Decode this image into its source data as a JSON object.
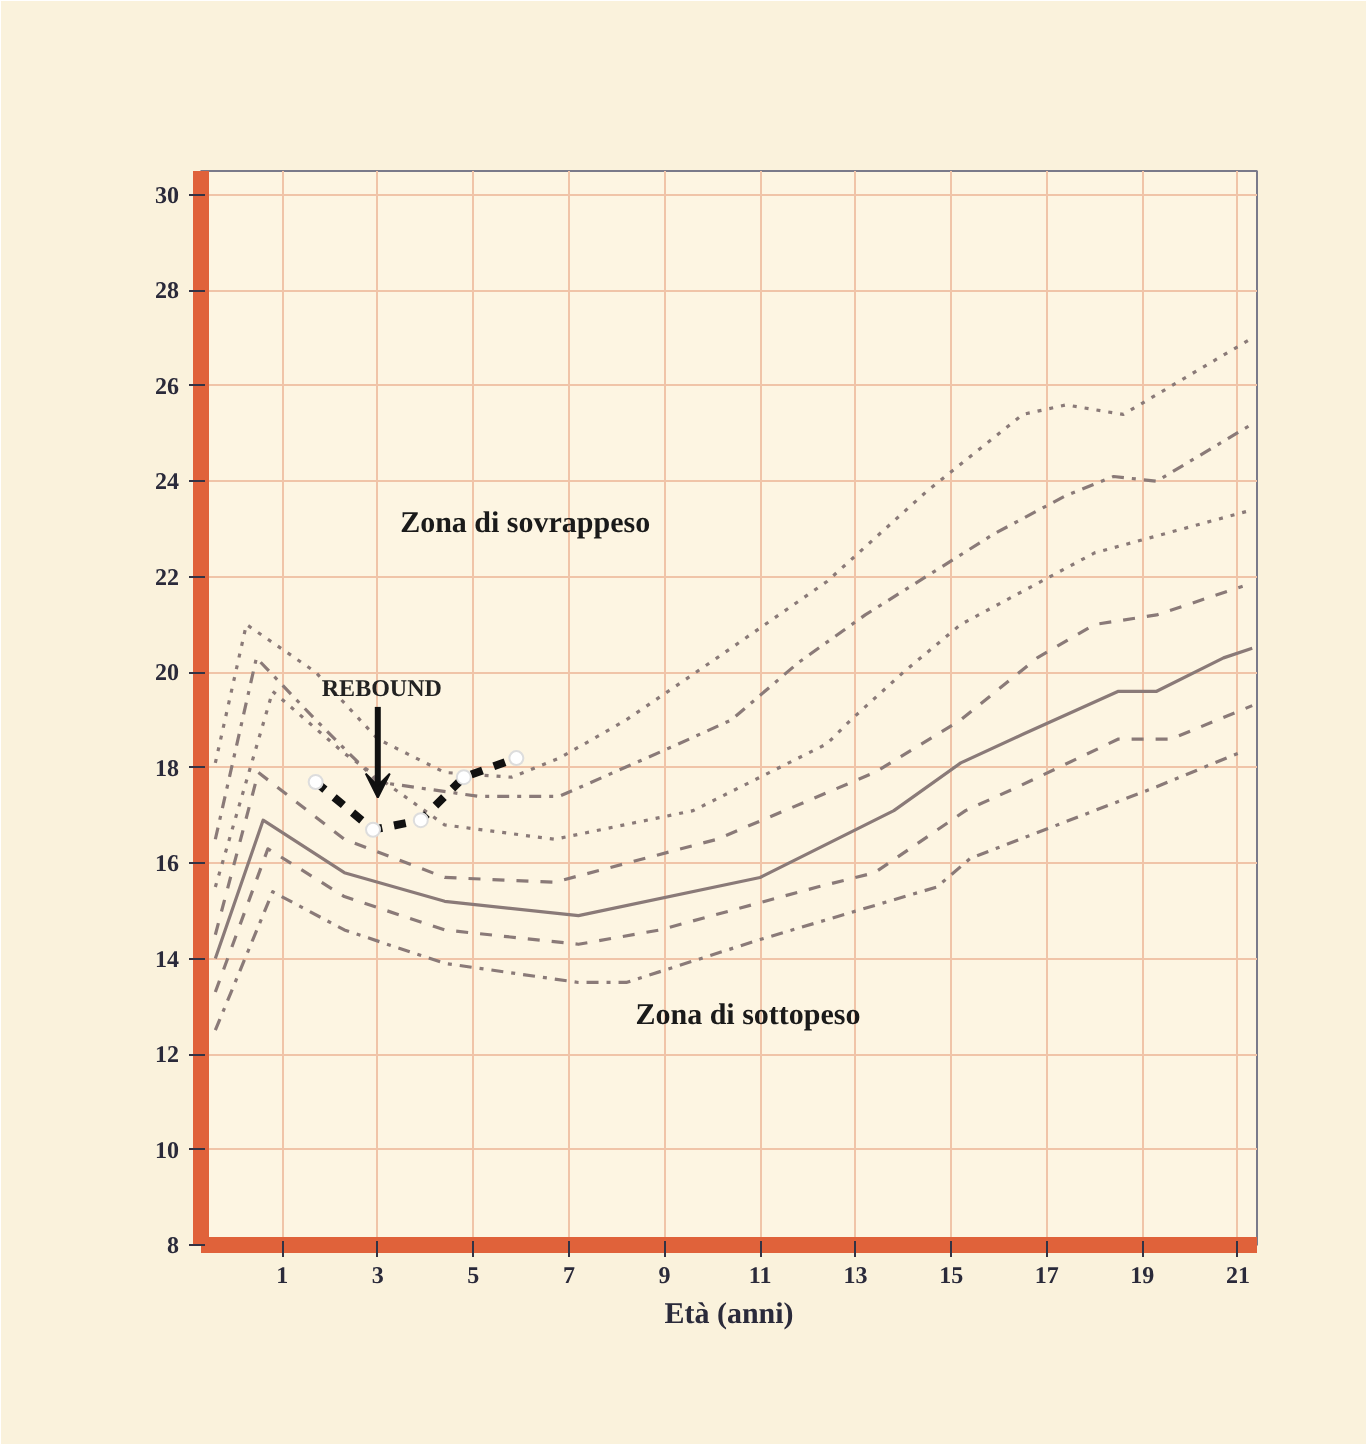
{
  "chart_data": {
    "type": "line",
    "xlabel": "Età (anni)",
    "xlim": [
      -0.7,
      21.4
    ],
    "ylim": [
      8,
      30.5
    ],
    "xticks": [
      1,
      3,
      5,
      7,
      9,
      11,
      13,
      15,
      17,
      19,
      21
    ],
    "yticks": [
      8,
      10,
      12,
      14,
      16,
      18,
      20,
      22,
      24,
      26,
      28,
      30
    ],
    "grid": true,
    "marker": "none",
    "series": [
      {
        "color": "#8a7a78",
        "line_style": "dotted",
        "x": [
          -0.4,
          0.25,
          1.7,
          3.0,
          4.4,
          5.8,
          6.8,
          8.2,
          10.1,
          12.4,
          14.5,
          16.5,
          17.4,
          18.6,
          21.3
        ],
        "values": [
          18.1,
          21.0,
          20.0,
          18.6,
          17.9,
          17.8,
          18.2,
          19.0,
          20.3,
          21.9,
          23.8,
          25.4,
          25.6,
          25.4,
          27.0
        ]
      },
      {
        "color": "#8a7a78",
        "line_style": "dashdot",
        "x": [
          -0.4,
          0.46,
          1.7,
          3.0,
          5.1,
          6.8,
          9.3,
          10.4,
          11.8,
          13.2,
          15.9,
          17.4,
          18.4,
          19.3,
          21.3
        ],
        "values": [
          16.5,
          20.3,
          19.0,
          17.7,
          17.4,
          17.4,
          18.5,
          19.0,
          20.2,
          21.2,
          22.9,
          23.7,
          24.1,
          24.0,
          25.2
        ]
      },
      {
        "color": "#8a7a78",
        "line_style": "dotted",
        "x": [
          -0.4,
          0.8,
          2.3,
          4.4,
          6.7,
          9.6,
          12.4,
          12.9,
          14.0,
          15.2,
          18.0,
          21.3
        ],
        "values": [
          15.5,
          19.6,
          18.3,
          16.8,
          16.5,
          17.1,
          18.5,
          19.0,
          20.0,
          21.0,
          22.5,
          23.4
        ]
      },
      {
        "color": "#8a7a78",
        "line_style": "dashed",
        "x": [
          -0.4,
          0.5,
          2.3,
          4.4,
          6.7,
          10.1,
          13.4,
          15.2,
          16.8,
          18.0,
          19.3,
          21.1
        ],
        "values": [
          14.5,
          17.9,
          16.5,
          15.7,
          15.6,
          16.5,
          17.9,
          19.0,
          20.3,
          21.0,
          21.2,
          21.8
        ]
      },
      {
        "color": "#8a7a78",
        "line_style": "solid",
        "x": [
          -0.4,
          0.6,
          2.3,
          4.4,
          7.2,
          11.0,
          13.8,
          15.2,
          16.5,
          18.5,
          19.3,
          20.7,
          21.3
        ],
        "values": [
          14.0,
          16.9,
          15.8,
          15.2,
          14.9,
          15.7,
          17.1,
          18.1,
          18.7,
          19.6,
          19.6,
          20.3,
          20.5
        ]
      },
      {
        "color": "#8a7a78",
        "line_style": "dashed",
        "x": [
          -0.4,
          0.7,
          2.3,
          4.4,
          7.2,
          8.9,
          12.2,
          13.4,
          15.3,
          16.4,
          18.5,
          19.6,
          21.3
        ],
        "values": [
          13.3,
          16.3,
          15.3,
          14.6,
          14.3,
          14.6,
          15.5,
          15.8,
          17.1,
          17.6,
          18.6,
          18.6,
          19.3
        ]
      },
      {
        "color": "#8a7a78",
        "line_style": "dashdot",
        "x": [
          -0.4,
          0.8,
          2.3,
          4.4,
          7.2,
          8.2,
          11.0,
          14.7,
          15.4,
          19.3,
          21.0
        ],
        "values": [
          12.5,
          15.4,
          14.6,
          13.9,
          13.5,
          13.5,
          14.4,
          15.5,
          16.1,
          17.6,
          18.3
        ]
      },
      {
        "color": "#111111",
        "line_style": "dashed",
        "marker": "circle",
        "x": [
          1.7,
          2.9,
          3.9,
          4.8,
          5.9
        ],
        "values": [
          17.7,
          16.7,
          16.9,
          17.8,
          18.2
        ]
      }
    ],
    "annotations": [
      {
        "text": "REBOUND",
        "x": 3,
        "y": 17.2
      },
      "Zona di sovrappeso",
      "Zona di sottopeso"
    ]
  }
}
